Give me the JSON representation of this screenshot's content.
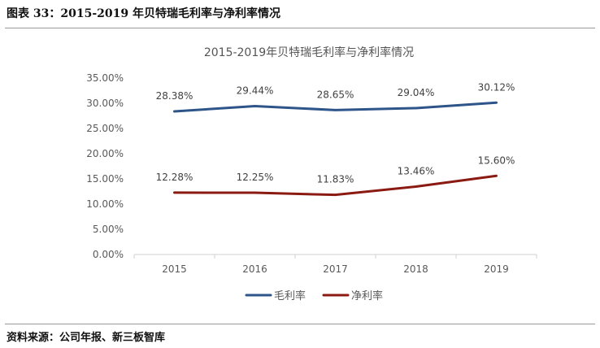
{
  "figure": {
    "caption": "图表 33：2015-2019 年贝特瑞毛利率与净利率情况",
    "source": "资料来源：公司年报、新三板智库"
  },
  "chart_data": {
    "type": "line",
    "title": "2015-2019年贝特瑞毛利率与净利率情况",
    "categories": [
      "2015",
      "2016",
      "2017",
      "2018",
      "2019"
    ],
    "series": [
      {
        "name": "毛利率",
        "color": "#2e5589",
        "values": [
          28.38,
          29.44,
          28.65,
          29.04,
          30.12
        ],
        "labels": [
          "28.38%",
          "29.44%",
          "28.65%",
          "29.04%",
          "30.12%"
        ]
      },
      {
        "name": "净利率",
        "color": "#8b1a12",
        "values": [
          12.28,
          12.25,
          11.83,
          13.46,
          15.6
        ],
        "labels": [
          "12.28%",
          "12.25%",
          "11.83%",
          "13.46%",
          "15.60%"
        ]
      }
    ],
    "yticks": [
      "0.00%",
      "5.00%",
      "10.00%",
      "15.00%",
      "20.00%",
      "25.00%",
      "30.00%",
      "35.00%"
    ],
    "ylim": [
      0,
      35
    ],
    "xlabel": "",
    "ylabel": "",
    "grid": false,
    "legend": "bottom-center"
  }
}
